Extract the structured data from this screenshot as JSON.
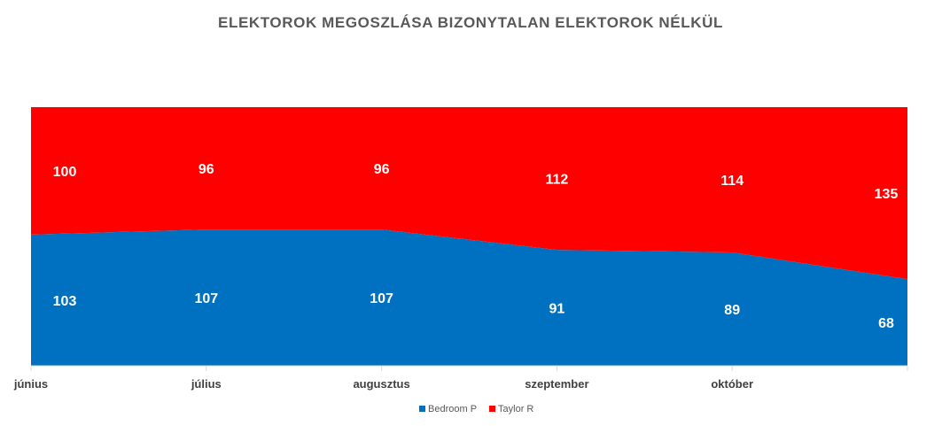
{
  "chart_data": {
    "type": "area",
    "stacked": true,
    "title": "ELEKTOROK  MEGOSZLÁSA BIZONYTALAN ELEKTOROK  NÉLKÜL",
    "categories": [
      "június",
      "július",
      "augusztus",
      "szeptember",
      "október",
      ""
    ],
    "series": [
      {
        "name": "Bedroom P",
        "color": "#0070C0",
        "values": [
          103,
          107,
          107,
          91,
          89,
          68
        ]
      },
      {
        "name": "Taylor R",
        "color": "#FF0000",
        "values": [
          100,
          96,
          96,
          112,
          114,
          135
        ]
      }
    ],
    "ylim": [
      0,
      203
    ],
    "grid": false,
    "legend_position": "bottom"
  }
}
